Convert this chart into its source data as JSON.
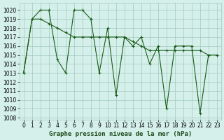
{
  "series1_x": [
    0,
    1,
    2,
    3,
    4,
    5,
    6,
    7,
    8,
    9,
    10,
    11,
    12,
    13,
    14,
    15,
    16,
    17,
    18,
    19,
    20,
    21,
    22,
    23
  ],
  "series1_y": [
    1013,
    1019,
    1019,
    1018.5,
    1018,
    1017.5,
    1017,
    1017,
    1017,
    1017,
    1017,
    1017,
    1017,
    1016.5,
    1016,
    1015.5,
    1015.5,
    1015.5,
    1015.5,
    1015.5,
    1015.5,
    1015.5,
    1015,
    1015
  ],
  "series2_x": [
    0,
    1,
    2,
    3,
    4,
    5,
    6,
    7,
    8,
    9,
    10,
    11,
    12,
    13,
    14,
    15,
    16,
    17,
    18,
    19,
    20,
    21,
    22,
    23
  ],
  "series2_y": [
    1013,
    1019,
    1020,
    1020,
    1014.5,
    1013,
    1020,
    1020,
    1019,
    1013,
    1018,
    1010.5,
    1017,
    1016,
    1017,
    1014,
    1016,
    1009,
    1016,
    1016,
    1016,
    1008.5,
    1015,
    1015
  ],
  "ylim": [
    1007.8,
    1020.8
  ],
  "xlim": [
    -0.5,
    23.5
  ],
  "yticks": [
    1008,
    1009,
    1010,
    1011,
    1012,
    1013,
    1014,
    1015,
    1016,
    1017,
    1018,
    1019,
    1020
  ],
  "xticks": [
    0,
    1,
    2,
    3,
    4,
    5,
    6,
    7,
    8,
    9,
    10,
    11,
    12,
    13,
    14,
    15,
    16,
    17,
    18,
    19,
    20,
    21,
    22,
    23
  ],
  "xlabel": "Graphe pression niveau de la mer (hPa)",
  "bg_color": "#d5f0ea",
  "grid_color": "#a0c8be",
  "line_color": "#1a5c1a",
  "tick_fontsize": 5.5,
  "label_fontsize": 6.5,
  "figsize": [
    3.2,
    2.0
  ],
  "dpi": 100
}
